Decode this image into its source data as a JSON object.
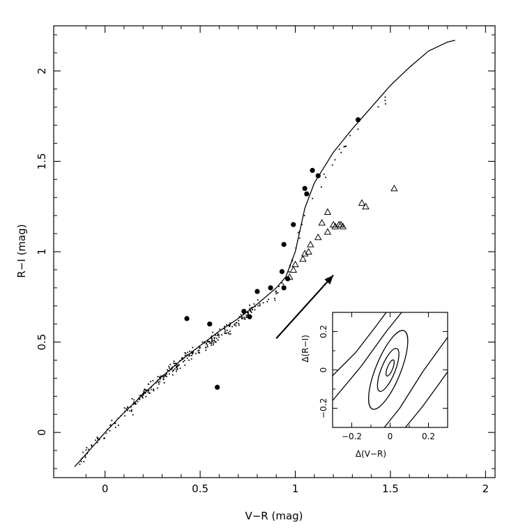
{
  "chart_data": [
    {
      "type": "scatter",
      "xlabel": "V−R (mag)",
      "ylabel": "R−I (mag)",
      "xlim": [
        -0.27,
        2.05
      ],
      "ylim": [
        -0.25,
        2.25
      ],
      "x_ticks": [
        0,
        0.5,
        1,
        1.5,
        2
      ],
      "y_ticks": [
        0,
        0.5,
        1,
        1.5,
        2
      ],
      "grid": false,
      "series": [
        {
          "kind": "filled-circles",
          "points": [
            [
              0.43,
              0.63
            ],
            [
              0.55,
              0.6
            ],
            [
              0.59,
              0.25
            ],
            [
              0.73,
              0.67
            ],
            [
              0.76,
              0.64
            ],
            [
              0.8,
              0.78
            ],
            [
              0.87,
              0.8
            ],
            [
              0.93,
              0.89
            ],
            [
              0.94,
              1.04
            ],
            [
              0.94,
              0.8
            ],
            [
              0.96,
              0.85
            ],
            [
              0.99,
              1.15
            ],
            [
              1.05,
              1.35
            ],
            [
              1.06,
              1.32
            ],
            [
              1.09,
              1.45
            ],
            [
              1.12,
              1.42
            ],
            [
              1.33,
              1.73
            ]
          ]
        },
        {
          "kind": "open-triangles",
          "points": [
            [
              0.97,
              0.86
            ],
            [
              0.99,
              0.9
            ],
            [
              1.0,
              0.93
            ],
            [
              1.04,
              0.96
            ],
            [
              1.05,
              0.99
            ],
            [
              1.07,
              1.0
            ],
            [
              1.08,
              1.04
            ],
            [
              1.12,
              1.08
            ],
            [
              1.14,
              1.16
            ],
            [
              1.17,
              1.11
            ],
            [
              1.17,
              1.22
            ],
            [
              1.2,
              1.15
            ],
            [
              1.21,
              1.14
            ],
            [
              1.23,
              1.15
            ],
            [
              1.24,
              1.15
            ],
            [
              1.25,
              1.14
            ],
            [
              1.35,
              1.27
            ],
            [
              1.37,
              1.25
            ],
            [
              1.52,
              1.35
            ]
          ]
        },
        {
          "kind": "line",
          "points": [
            [
              -0.16,
              -0.19
            ],
            [
              -0.1,
              -0.12
            ],
            [
              0.0,
              0.0
            ],
            [
              0.1,
              0.11
            ],
            [
              0.2,
              0.21
            ],
            [
              0.3,
              0.31
            ],
            [
              0.4,
              0.4
            ],
            [
              0.5,
              0.48
            ],
            [
              0.6,
              0.56
            ],
            [
              0.7,
              0.63
            ],
            [
              0.8,
              0.71
            ],
            [
              0.9,
              0.8
            ],
            [
              0.95,
              0.86
            ],
            [
              1.0,
              1.0
            ],
            [
              1.05,
              1.24
            ],
            [
              1.1,
              1.38
            ],
            [
              1.2,
              1.55
            ],
            [
              1.3,
              1.68
            ],
            [
              1.4,
              1.8
            ],
            [
              1.5,
              1.92
            ],
            [
              1.6,
              2.02
            ],
            [
              1.7,
              2.11
            ],
            [
              1.8,
              2.16
            ],
            [
              1.84,
              2.17
            ]
          ]
        },
        {
          "kind": "small-dots",
          "trend": [
            [
              -0.15,
              -0.18
            ],
            [
              0.0,
              0.0
            ],
            [
              0.2,
              0.21
            ],
            [
              0.4,
              0.39
            ],
            [
              0.6,
              0.54
            ],
            [
              0.8,
              0.69
            ],
            [
              0.95,
              0.82
            ],
            [
              1.05,
              1.22
            ],
            [
              1.3,
              1.66
            ],
            [
              1.82,
              2.17
            ]
          ],
          "count": 340,
          "seed": 7
        }
      ],
      "annotations": [
        {
          "kind": "arrow",
          "from": [
            0.9,
            0.52
          ],
          "to": [
            1.2,
            0.87
          ]
        }
      ]
    },
    {
      "type": "contour",
      "role": "inset",
      "xlabel": "Δ(V−R)",
      "ylabel": "Δ(R−I)",
      "xlim": [
        -0.3,
        0.3
      ],
      "ylim": [
        -0.3,
        0.3
      ],
      "x_ticks": [
        -0.2,
        0,
        0.2
      ],
      "y_ticks": [
        -0.2,
        0,
        0.2
      ],
      "x_tick_labels": [
        "−0.2",
        "0",
        "0.2"
      ],
      "y_tick_labels": [
        "−0.2",
        "0",
        "0.2"
      ],
      "closed_contours": [
        {
          "center": [
            0.0,
            0.01
          ],
          "semi_major": 0.045,
          "semi_minor": 0.014,
          "angle_deg": 68
        },
        {
          "center": [
            -0.01,
            0.0
          ],
          "semi_major": 0.12,
          "semi_minor": 0.036,
          "angle_deg": 68
        },
        {
          "center": [
            -0.01,
            0.0
          ],
          "semi_major": 0.22,
          "semi_minor": 0.065,
          "angle_deg": 68
        }
      ],
      "open_contours": [
        [
          [
            -0.3,
            -0.03
          ],
          [
            -0.18,
            0.09
          ],
          [
            -0.08,
            0.22
          ],
          [
            -0.02,
            0.3
          ]
        ],
        [
          [
            -0.3,
            -0.16
          ],
          [
            -0.15,
            0.02
          ],
          [
            -0.02,
            0.2
          ],
          [
            0.06,
            0.3
          ]
        ],
        [
          [
            -0.03,
            -0.3
          ],
          [
            0.05,
            -0.2
          ],
          [
            0.17,
            -0.01
          ],
          [
            0.3,
            0.17
          ]
        ],
        [
          [
            0.08,
            -0.3
          ],
          [
            0.17,
            -0.19
          ],
          [
            0.25,
            -0.08
          ],
          [
            0.3,
            -0.01
          ]
        ]
      ]
    }
  ]
}
